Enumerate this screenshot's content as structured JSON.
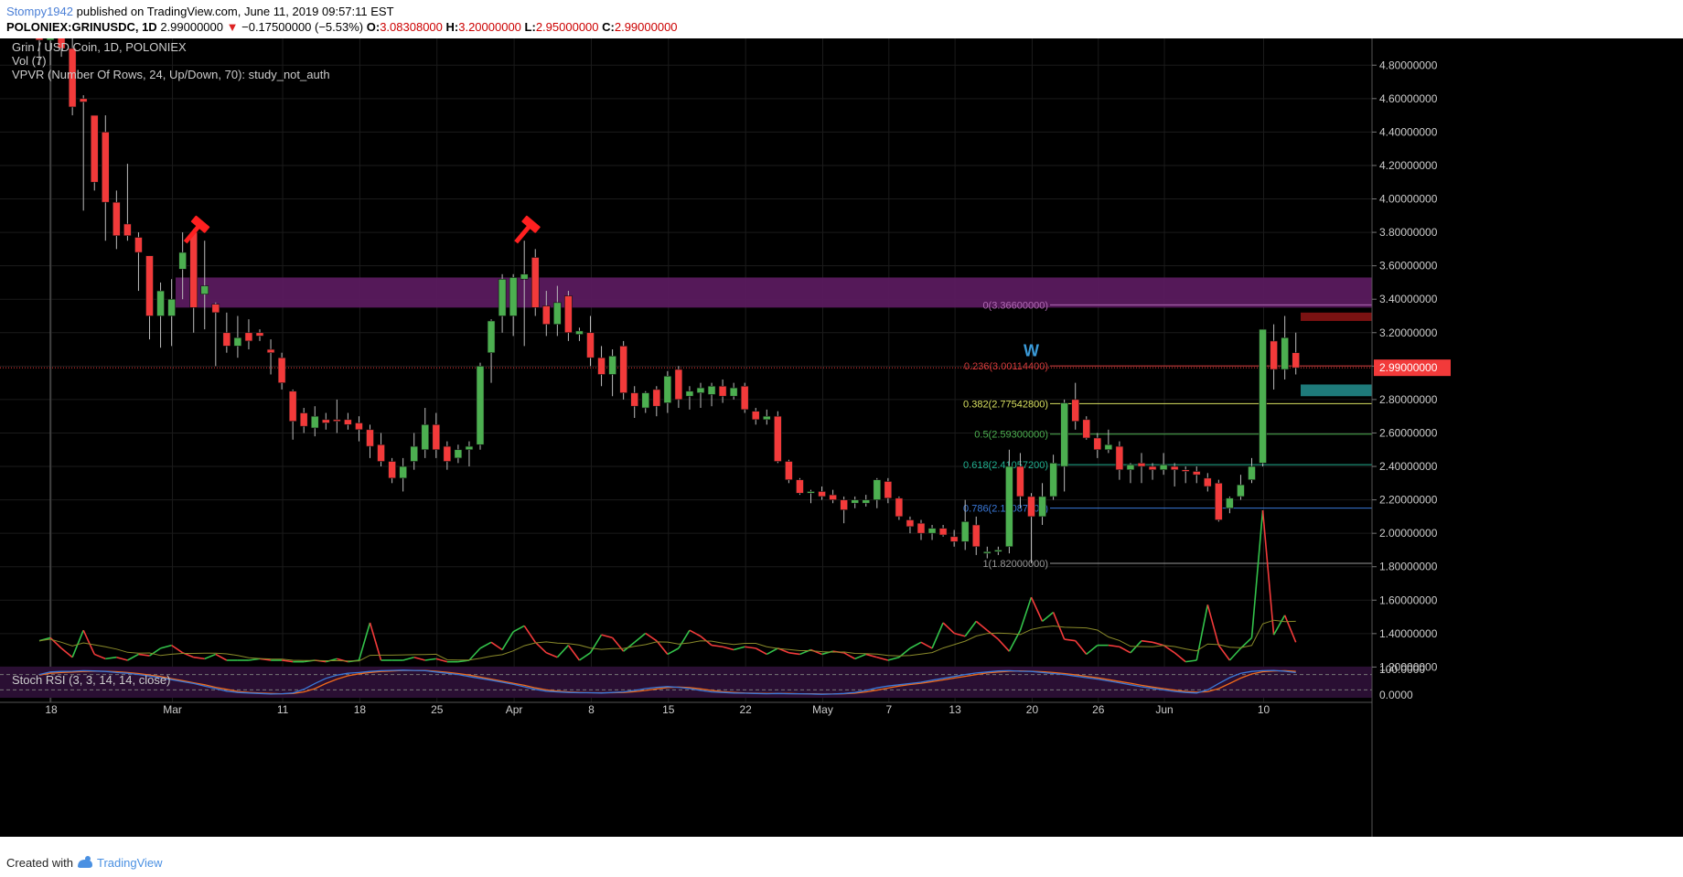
{
  "header": {
    "author": "Stompy1942",
    "published": "published on TradingView.com, June 11, 2019 09:57:11 EST",
    "symbol": "POLONIEX:GRINUSDC, 1D",
    "last": "2.99000000",
    "change_arrow": "▼",
    "change": "−0.17500000 (−5.53%)",
    "o_label": "O:",
    "o": "3.08308000",
    "h_label": "H:",
    "h": "3.20000000",
    "l_label": "L:",
    "l": "2.95000000",
    "c_label": "C:",
    "c": "2.99000000"
  },
  "legend": {
    "title": "Grin / USD Coin, 1D, POLONIEX",
    "vol": "Vol (7)",
    "vpvr": "VPVR (Number Of Rows, 24, Up/Down, 70): study_not_auth",
    "stoch": "Stoch RSI (3, 3, 14, 14, close)"
  },
  "footer": {
    "made": "Created with",
    "brand": "TradingView"
  },
  "colors": {
    "background": "#000000",
    "up": "#4caf50",
    "down": "#f23a3a",
    "resistance_zone": "#5a1a5e",
    "stoch_k": "#3a78d8",
    "stoch_d": "#f06a1a",
    "vol_line_up": "#33c24a",
    "vol_line_down": "#f23a3a"
  },
  "chart_data": {
    "type": "candlestick",
    "symbol": "POLONIEX:GRINUSDC",
    "interval": "1D",
    "ylim": [
      0.0,
      4.96
    ],
    "price_ticks": [
      "4.80000000",
      "4.60000000",
      "4.40000000",
      "4.20000000",
      "4.00000000",
      "3.80000000",
      "3.60000000",
      "3.40000000",
      "3.20000000",
      "3.00000000",
      "2.80000000",
      "2.60000000",
      "2.40000000",
      "2.20000000",
      "2.00000000",
      "1.80000000",
      "1.60000000",
      "1.40000000",
      "1.20000000"
    ],
    "stoch_ticks": [
      "100.0000",
      "0.0000"
    ],
    "last_price_label": "2.99000000",
    "date_ticks": [
      {
        "label": "18",
        "day": 0
      },
      {
        "label": "Mar",
        "day": 11
      },
      {
        "label": "11",
        "day": 21
      },
      {
        "label": "18",
        "day": 28
      },
      {
        "label": "25",
        "day": 35
      },
      {
        "label": "Apr",
        "day": 42
      },
      {
        "label": "8",
        "day": 49
      },
      {
        "label": "15",
        "day": 56
      },
      {
        "label": "22",
        "day": 63
      },
      {
        "label": "May",
        "day": 70
      },
      {
        "label": "7",
        "day": 76
      },
      {
        "label": "13",
        "day": 82
      },
      {
        "label": "20",
        "day": 89
      },
      {
        "label": "26",
        "day": 95
      },
      {
        "label": "Jun",
        "day": 101
      },
      {
        "label": "10",
        "day": 110
      }
    ],
    "candles": [
      {
        "o": 5.1,
        "h": 5.3,
        "l": 4.8,
        "c": 4.95
      },
      {
        "o": 4.95,
        "h": 5.1,
        "l": 4.8,
        "c": 5.05
      },
      {
        "o": 5.05,
        "h": 5.2,
        "l": 4.85,
        "c": 4.9
      },
      {
        "o": 4.9,
        "h": 5.0,
        "l": 4.5,
        "c": 4.55
      },
      {
        "o": 4.6,
        "h": 4.62,
        "l": 3.93,
        "c": 4.58
      },
      {
        "o": 4.5,
        "h": 4.5,
        "l": 4.05,
        "c": 4.1
      },
      {
        "o": 4.4,
        "h": 4.5,
        "l": 3.75,
        "c": 3.98
      },
      {
        "o": 3.98,
        "h": 4.05,
        "l": 3.7,
        "c": 3.78
      },
      {
        "o": 3.85,
        "h": 4.21,
        "l": 3.75,
        "c": 3.78
      },
      {
        "o": 3.77,
        "h": 3.8,
        "l": 3.45,
        "c": 3.68
      },
      {
        "o": 3.66,
        "h": 3.66,
        "l": 3.16,
        "c": 3.3
      },
      {
        "o": 3.3,
        "h": 3.5,
        "l": 3.11,
        "c": 3.45
      },
      {
        "o": 3.3,
        "h": 3.52,
        "l": 3.12,
        "c": 3.4
      },
      {
        "o": 3.58,
        "h": 3.8,
        "l": 3.4,
        "c": 3.68
      },
      {
        "o": 3.8,
        "h": 3.82,
        "l": 3.2,
        "c": 3.35
      },
      {
        "o": 3.43,
        "h": 3.75,
        "l": 3.22,
        "c": 3.48
      },
      {
        "o": 3.37,
        "h": 3.38,
        "l": 3.0,
        "c": 3.32
      },
      {
        "o": 3.2,
        "h": 3.32,
        "l": 3.08,
        "c": 3.12
      },
      {
        "o": 3.12,
        "h": 3.3,
        "l": 3.05,
        "c": 3.17
      },
      {
        "o": 3.2,
        "h": 3.28,
        "l": 3.1,
        "c": 3.15
      },
      {
        "o": 3.2,
        "h": 3.22,
        "l": 3.15,
        "c": 3.18
      },
      {
        "o": 3.1,
        "h": 3.16,
        "l": 2.95,
        "c": 3.08
      },
      {
        "o": 3.05,
        "h": 3.08,
        "l": 2.86,
        "c": 2.9
      },
      {
        "o": 2.85,
        "h": 2.86,
        "l": 2.56,
        "c": 2.67
      },
      {
        "o": 2.72,
        "h": 2.75,
        "l": 2.6,
        "c": 2.64
      },
      {
        "o": 2.63,
        "h": 2.76,
        "l": 2.58,
        "c": 2.7
      },
      {
        "o": 2.68,
        "h": 2.72,
        "l": 2.62,
        "c": 2.66
      },
      {
        "o": 2.68,
        "h": 2.8,
        "l": 2.6,
        "c": 2.67
      },
      {
        "o": 2.68,
        "h": 2.72,
        "l": 2.62,
        "c": 2.65
      },
      {
        "o": 2.66,
        "h": 2.7,
        "l": 2.55,
        "c": 2.62
      },
      {
        "o": 2.62,
        "h": 2.65,
        "l": 2.45,
        "c": 2.52
      },
      {
        "o": 2.53,
        "h": 2.6,
        "l": 2.4,
        "c": 2.43
      },
      {
        "o": 2.43,
        "h": 2.45,
        "l": 2.3,
        "c": 2.33
      },
      {
        "o": 2.33,
        "h": 2.45,
        "l": 2.25,
        "c": 2.4
      },
      {
        "o": 2.43,
        "h": 2.6,
        "l": 2.38,
        "c": 2.52
      },
      {
        "o": 2.5,
        "h": 2.75,
        "l": 2.45,
        "c": 2.65
      },
      {
        "o": 2.65,
        "h": 2.72,
        "l": 2.45,
        "c": 2.5
      },
      {
        "o": 2.52,
        "h": 2.55,
        "l": 2.38,
        "c": 2.43
      },
      {
        "o": 2.45,
        "h": 2.53,
        "l": 2.42,
        "c": 2.5
      },
      {
        "o": 2.5,
        "h": 2.55,
        "l": 2.4,
        "c": 2.52
      },
      {
        "o": 2.53,
        "h": 3.02,
        "l": 2.5,
        "c": 3.0
      },
      {
        "o": 3.08,
        "h": 3.28,
        "l": 2.9,
        "c": 3.27
      },
      {
        "o": 3.3,
        "h": 3.55,
        "l": 3.2,
        "c": 3.52
      },
      {
        "o": 3.3,
        "h": 3.55,
        "l": 3.18,
        "c": 3.53
      },
      {
        "o": 3.52,
        "h": 3.75,
        "l": 3.12,
        "c": 3.55
      },
      {
        "o": 3.65,
        "h": 3.7,
        "l": 3.3,
        "c": 3.35
      },
      {
        "o": 3.36,
        "h": 3.45,
        "l": 3.18,
        "c": 3.25
      },
      {
        "o": 3.25,
        "h": 3.48,
        "l": 3.18,
        "c": 3.38
      },
      {
        "o": 3.42,
        "h": 3.45,
        "l": 3.15,
        "c": 3.2
      },
      {
        "o": 3.19,
        "h": 3.23,
        "l": 3.15,
        "c": 3.21
      },
      {
        "o": 3.2,
        "h": 3.3,
        "l": 3.0,
        "c": 3.05
      },
      {
        "o": 3.05,
        "h": 3.12,
        "l": 2.88,
        "c": 2.95
      },
      {
        "o": 2.95,
        "h": 3.1,
        "l": 2.82,
        "c": 3.06
      },
      {
        "o": 3.12,
        "h": 3.15,
        "l": 2.8,
        "c": 2.84
      },
      {
        "o": 2.84,
        "h": 2.88,
        "l": 2.69,
        "c": 2.76
      },
      {
        "o": 2.75,
        "h": 2.85,
        "l": 2.72,
        "c": 2.84
      },
      {
        "o": 2.86,
        "h": 2.88,
        "l": 2.7,
        "c": 2.76
      },
      {
        "o": 2.78,
        "h": 2.97,
        "l": 2.72,
        "c": 2.94
      },
      {
        "o": 2.98,
        "h": 3.0,
        "l": 2.75,
        "c": 2.8
      },
      {
        "o": 2.82,
        "h": 2.88,
        "l": 2.74,
        "c": 2.85
      },
      {
        "o": 2.84,
        "h": 2.9,
        "l": 2.75,
        "c": 2.87
      },
      {
        "o": 2.83,
        "h": 2.9,
        "l": 2.76,
        "c": 2.88
      },
      {
        "o": 2.88,
        "h": 2.92,
        "l": 2.78,
        "c": 2.82
      },
      {
        "o": 2.82,
        "h": 2.9,
        "l": 2.8,
        "c": 2.87
      },
      {
        "o": 2.88,
        "h": 2.9,
        "l": 2.72,
        "c": 2.74
      },
      {
        "o": 2.73,
        "h": 2.75,
        "l": 2.65,
        "c": 2.68
      },
      {
        "o": 2.68,
        "h": 2.74,
        "l": 2.65,
        "c": 2.7
      },
      {
        "o": 2.7,
        "h": 2.73,
        "l": 2.42,
        "c": 2.43
      },
      {
        "o": 2.43,
        "h": 2.44,
        "l": 2.3,
        "c": 2.32
      },
      {
        "o": 2.32,
        "h": 2.33,
        "l": 2.23,
        "c": 2.24
      },
      {
        "o": 2.24,
        "h": 2.26,
        "l": 2.18,
        "c": 2.25
      },
      {
        "o": 2.25,
        "h": 2.28,
        "l": 2.2,
        "c": 2.22
      },
      {
        "o": 2.23,
        "h": 2.26,
        "l": 2.18,
        "c": 2.2
      },
      {
        "o": 2.2,
        "h": 2.22,
        "l": 2.06,
        "c": 2.14
      },
      {
        "o": 2.18,
        "h": 2.22,
        "l": 2.15,
        "c": 2.2
      },
      {
        "o": 2.18,
        "h": 2.23,
        "l": 2.16,
        "c": 2.2
      },
      {
        "o": 2.2,
        "h": 2.33,
        "l": 2.15,
        "c": 2.32
      },
      {
        "o": 2.31,
        "h": 2.33,
        "l": 2.18,
        "c": 2.21
      },
      {
        "o": 2.21,
        "h": 2.22,
        "l": 2.08,
        "c": 2.1
      },
      {
        "o": 2.08,
        "h": 2.1,
        "l": 2.0,
        "c": 2.04
      },
      {
        "o": 2.06,
        "h": 2.08,
        "l": 1.96,
        "c": 2.0
      },
      {
        "o": 2.0,
        "h": 2.05,
        "l": 1.96,
        "c": 2.03
      },
      {
        "o": 2.03,
        "h": 2.05,
        "l": 1.98,
        "c": 1.99
      },
      {
        "o": 1.98,
        "h": 2.02,
        "l": 1.92,
        "c": 1.95
      },
      {
        "o": 1.95,
        "h": 2.2,
        "l": 1.9,
        "c": 2.07
      },
      {
        "o": 2.05,
        "h": 2.1,
        "l": 1.87,
        "c": 1.92
      },
      {
        "o": 1.88,
        "h": 1.92,
        "l": 1.85,
        "c": 1.89
      },
      {
        "o": 1.89,
        "h": 1.92,
        "l": 1.87,
        "c": 1.9
      },
      {
        "o": 1.92,
        "h": 2.5,
        "l": 1.88,
        "c": 2.4
      },
      {
        "o": 2.4,
        "h": 2.48,
        "l": 2.15,
        "c": 2.22
      },
      {
        "o": 2.22,
        "h": 2.24,
        "l": 1.82,
        "c": 2.1
      },
      {
        "o": 2.1,
        "h": 2.3,
        "l": 2.05,
        "c": 2.22
      },
      {
        "o": 2.22,
        "h": 2.47,
        "l": 2.2,
        "c": 2.42
      },
      {
        "o": 2.4,
        "h": 2.8,
        "l": 2.25,
        "c": 2.78
      },
      {
        "o": 2.8,
        "h": 2.9,
        "l": 2.62,
        "c": 2.67
      },
      {
        "o": 2.68,
        "h": 2.7,
        "l": 2.56,
        "c": 2.57
      },
      {
        "o": 2.57,
        "h": 2.6,
        "l": 2.45,
        "c": 2.5
      },
      {
        "o": 2.5,
        "h": 2.62,
        "l": 2.48,
        "c": 2.53
      },
      {
        "o": 2.52,
        "h": 2.55,
        "l": 2.32,
        "c": 2.38
      },
      {
        "o": 2.38,
        "h": 2.42,
        "l": 2.3,
        "c": 2.41
      },
      {
        "o": 2.42,
        "h": 2.48,
        "l": 2.3,
        "c": 2.4
      },
      {
        "o": 2.4,
        "h": 2.42,
        "l": 2.32,
        "c": 2.38
      },
      {
        "o": 2.38,
        "h": 2.48,
        "l": 2.35,
        "c": 2.41
      },
      {
        "o": 2.4,
        "h": 2.42,
        "l": 2.28,
        "c": 2.38
      },
      {
        "o": 2.38,
        "h": 2.4,
        "l": 2.3,
        "c": 2.37
      },
      {
        "o": 2.37,
        "h": 2.4,
        "l": 2.3,
        "c": 2.35
      },
      {
        "o": 2.33,
        "h": 2.36,
        "l": 2.25,
        "c": 2.28
      },
      {
        "o": 2.3,
        "h": 2.32,
        "l": 2.07,
        "c": 2.08
      },
      {
        "o": 2.15,
        "h": 2.22,
        "l": 2.12,
        "c": 2.21
      },
      {
        "o": 2.22,
        "h": 2.35,
        "l": 2.2,
        "c": 2.29
      },
      {
        "o": 2.32,
        "h": 2.45,
        "l": 2.3,
        "c": 2.4
      },
      {
        "o": 2.42,
        "h": 3.22,
        "l": 2.4,
        "c": 3.22
      },
      {
        "o": 3.15,
        "h": 3.25,
        "l": 2.86,
        "c": 2.98
      },
      {
        "o": 2.98,
        "h": 3.3,
        "l": 2.92,
        "c": 3.17
      },
      {
        "o": 3.08,
        "h": 3.2,
        "l": 2.95,
        "c": 2.99
      }
    ],
    "volume_osc": [
      1.23,
      1.25,
      1.18,
      1.12,
      1.3,
      1.14,
      1.11,
      1.12,
      1.1,
      1.14,
      1.13,
      1.18,
      1.2,
      1.15,
      1.12,
      1.11,
      1.14,
      1.1,
      1.1,
      1.1,
      1.11,
      1.1,
      1.1,
      1.09,
      1.09,
      1.1,
      1.09,
      1.11,
      1.09,
      1.1,
      1.35,
      1.1,
      1.1,
      1.1,
      1.12,
      1.1,
      1.11,
      1.09,
      1.09,
      1.1,
      1.18,
      1.22,
      1.17,
      1.29,
      1.33,
      1.22,
      1.15,
      1.12,
      1.2,
      1.1,
      1.15,
      1.27,
      1.25,
      1.16,
      1.22,
      1.28,
      1.23,
      1.14,
      1.18,
      1.3,
      1.26,
      1.2,
      1.19,
      1.17,
      1.19,
      1.18,
      1.14,
      1.18,
      1.15,
      1.14,
      1.17,
      1.14,
      1.16,
      1.15,
      1.11,
      1.14,
      1.12,
      1.1,
      1.12,
      1.18,
      1.22,
      1.18,
      1.35,
      1.28,
      1.26,
      1.36,
      1.3,
      1.24,
      1.16,
      1.3,
      1.52,
      1.36,
      1.42,
      1.24,
      1.23,
      1.14,
      1.2,
      1.2,
      1.19,
      1.15,
      1.23,
      1.22,
      1.2,
      1.15,
      1.09,
      1.1,
      1.47,
      1.2,
      1.1,
      1.18,
      1.25,
      2.1,
      1.27,
      1.4,
      1.22
    ],
    "stoch_k": [
      80,
      90,
      92,
      93,
      95,
      94,
      92,
      88,
      85,
      80,
      74,
      68,
      60,
      52,
      45,
      35,
      25,
      15,
      10,
      8,
      6,
      4,
      5,
      8,
      22,
      45,
      65,
      78,
      85,
      88,
      92,
      95,
      96,
      97,
      96,
      95,
      90,
      85,
      80,
      72,
      65,
      58,
      50,
      42,
      32,
      22,
      15,
      12,
      10,
      9,
      9,
      8,
      10,
      12,
      18,
      25,
      30,
      33,
      30,
      25,
      18,
      12,
      10,
      8,
      7,
      6,
      5,
      6,
      5,
      5,
      4,
      3,
      4,
      6,
      10,
      18,
      28,
      35,
      40,
      45,
      50,
      58,
      65,
      72,
      80,
      86,
      90,
      94,
      95,
      93,
      92,
      88,
      84,
      80,
      74,
      68,
      62,
      55,
      48,
      40,
      32,
      26,
      20,
      14,
      10,
      8,
      20,
      45,
      68,
      85,
      92,
      95,
      96,
      93,
      88
    ],
    "stoch_d": [
      78,
      85,
      88,
      90,
      92,
      93,
      93,
      91,
      88,
      84,
      78,
      72,
      64,
      56,
      48,
      40,
      30,
      22,
      14,
      10,
      8,
      6,
      5,
      6,
      12,
      25,
      45,
      62,
      75,
      83,
      88,
      92,
      94,
      96,
      96,
      96,
      93,
      89,
      84,
      78,
      70,
      62,
      54,
      46,
      38,
      28,
      20,
      15,
      12,
      10,
      9,
      9,
      9,
      10,
      13,
      18,
      24,
      29,
      31,
      29,
      24,
      18,
      13,
      10,
      8,
      7,
      6,
      6,
      6,
      5,
      5,
      4,
      4,
      5,
      7,
      12,
      19,
      27,
      35,
      41,
      46,
      52,
      59,
      66,
      73,
      80,
      86,
      90,
      93,
      94,
      93,
      91,
      88,
      84,
      79,
      73,
      67,
      60,
      53,
      46,
      38,
      31,
      25,
      19,
      14,
      11,
      13,
      25,
      45,
      66,
      82,
      91,
      94,
      95,
      92
    ],
    "fibonacci": [
      {
        "label": "0(3.36600000)",
        "level": 3.366,
        "color": "#b06ab3"
      },
      {
        "label": "0.236(3.00114400)",
        "level": 3.00114,
        "color": "#d03a3a"
      },
      {
        "label": "0.382(2.77542800)",
        "level": 2.77543,
        "color": "#d8e060"
      },
      {
        "label": "0.5(2.59300000)",
        "level": 2.593,
        "color": "#4caf50"
      },
      {
        "label": "0.618(2.41057200)",
        "level": 2.41057,
        "color": "#20b090"
      },
      {
        "label": "0.786(2.15087400)",
        "level": 2.15087,
        "color": "#3a78d8"
      },
      {
        "label": "1(1.82000000)",
        "level": 1.82,
        "color": "#999999"
      }
    ],
    "resistance_zone": [
      3.35,
      3.53
    ],
    "annotations": [
      {
        "text": "W",
        "day": 90,
        "price": 3.06,
        "color": "#3a9ad8"
      }
    ],
    "hammer_icons": [
      {
        "day": 13
      },
      {
        "day": 43
      }
    ]
  }
}
